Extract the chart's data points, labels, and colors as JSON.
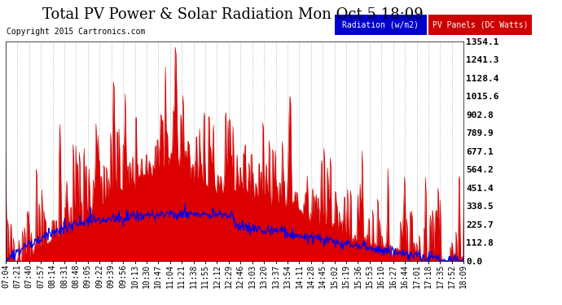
{
  "title": "Total PV Power & Solar Radiation Mon Oct 5 18:09",
  "copyright": "Copyright 2015 Cartronics.com",
  "ylabel_right_ticks": [
    0.0,
    112.8,
    225.7,
    338.5,
    451.4,
    564.2,
    677.1,
    789.9,
    902.8,
    1015.6,
    1128.4,
    1241.3,
    1354.1
  ],
  "ymax": 1354.1,
  "ymin": 0.0,
  "background_color": "#ffffff",
  "plot_bg_color": "#ffffff",
  "grid_color": "#aaaaaa",
  "legend_radiation_bg": "#0000cc",
  "legend_pv_bg": "#cc0000",
  "legend_radiation_text": "Radiation (w/m2)",
  "legend_pv_text": "PV Panels (DC Watts)",
  "xtick_labels": [
    "07:04",
    "07:21",
    "07:40",
    "07:57",
    "08:14",
    "08:31",
    "08:48",
    "09:05",
    "09:22",
    "09:39",
    "09:56",
    "10:13",
    "10:30",
    "10:47",
    "11:04",
    "11:21",
    "11:38",
    "11:55",
    "12:12",
    "12:29",
    "12:46",
    "13:03",
    "13:20",
    "13:37",
    "13:54",
    "14:11",
    "14:28",
    "14:45",
    "15:02",
    "15:19",
    "15:36",
    "15:53",
    "16:10",
    "16:27",
    "16:44",
    "17:01",
    "17:18",
    "17:35",
    "17:52",
    "18:09"
  ],
  "title_fontsize": 13,
  "copyright_fontsize": 7,
  "tick_fontsize": 7,
  "legend_fontsize": 7
}
